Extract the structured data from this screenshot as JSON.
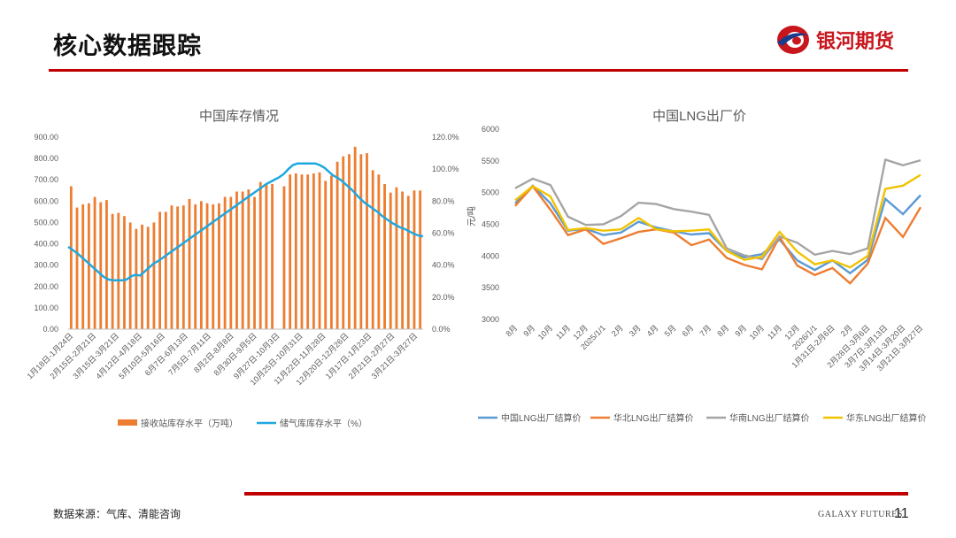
{
  "page": {
    "title": "核心数据跟踪",
    "brand": "银河期货",
    "source": "数据来源：气库、清能咨询",
    "footer_brand": "GALAXY FUTURES",
    "page_number": "11",
    "accent": "#c00000"
  },
  "chart_data": [
    {
      "type": "bar+line",
      "title": "中国库存情况",
      "categories": [
        "1月18日-1月24日",
        "2月15日-2月21日",
        "3月15日-3月21日",
        "4月12日-4月18日",
        "5月10日-5月16日",
        "6月7日-6月13日",
        "7月5日-7月11日",
        "8月2日-8月8日",
        "8月30日-9月5日",
        "9月27日-10月3日",
        "10月25日-10月31日",
        "11月22日-11月28日",
        "12月20日-12月26日",
        "1月17日-1月23日",
        "2月21日-2月27日",
        "3月21日-3月27日"
      ],
      "bar_values": [
        670,
        570,
        585,
        590,
        620,
        595,
        605,
        540,
        545,
        530,
        500,
        470,
        490,
        480,
        500,
        550,
        550,
        580,
        575,
        580,
        610,
        585,
        600,
        590,
        585,
        590,
        620,
        620,
        645,
        645,
        655,
        620,
        690,
        680,
        680,
        null,
        670,
        725,
        730,
        725,
        725,
        730,
        735,
        695,
        720,
        785,
        810,
        820,
        855,
        820,
        825,
        745,
        725,
        680,
        640,
        665,
        645,
        625,
        650,
        650
      ],
      "line_values": [
        51.5,
        49.5,
        47.5,
        45,
        42.5,
        40,
        37.5,
        35,
        32.5,
        31,
        30.5,
        30.5,
        30.5,
        31,
        33,
        34,
        33.5,
        36,
        38.5,
        41,
        42.5,
        44.5,
        46.5,
        48.5,
        50.5,
        52.5,
        54.5,
        56.5,
        58.5,
        60.5,
        62.5,
        64.5,
        66.5,
        68.5,
        70.5,
        72.5,
        74.5,
        76.5,
        78.5,
        80.5,
        82.5,
        84.5,
        86.5,
        88.5,
        90.5,
        92,
        93.5,
        95,
        97,
        100,
        102.5,
        103.5,
        103.5,
        103.5,
        103.5,
        103.5,
        102.5,
        101,
        98.5,
        96,
        94.5,
        92.5,
        90,
        87.5,
        84.5,
        81.5,
        79,
        77,
        75,
        73,
        70.5,
        68.5,
        66.5,
        65,
        63.5,
        62.5,
        61,
        59.5,
        58.5,
        58
      ],
      "series": [
        {
          "name": "接收站库存水平（万吨）",
          "color": "#ed7d31",
          "axis": "left"
        },
        {
          "name": "储气库库存水平（%）",
          "color": "#1fa8df",
          "axis": "right"
        }
      ],
      "left_axis": {
        "min": 0,
        "max": 900,
        "ticks": [
          "900.00",
          "800.00",
          "700.00",
          "600.00",
          "500.00",
          "400.00",
          "300.00",
          "200.00",
          "100.00",
          "0.00"
        ]
      },
      "right_axis": {
        "min": 0,
        "max": 120,
        "ticks": [
          "120.0%",
          "100.0%",
          "80.0%",
          "60.0%",
          "40.0%",
          "20.0%",
          "0.0%"
        ]
      }
    },
    {
      "type": "line",
      "title": "中国LNG出厂价",
      "ylabel": "元/吨",
      "categories": [
        "8月",
        "9月",
        "10月",
        "11月",
        "12月",
        "2025/1/1",
        "2月",
        "3月",
        "4月",
        "5月",
        "6月",
        "7月",
        "8月",
        "9月",
        "10月",
        "11月",
        "12月",
        "2026/1/1",
        "1月31日-2月6日",
        "2月",
        "2月28日-3月6日",
        "3月7日-3月13日",
        "3月14日-3月20日",
        "3月21日-3月27日"
      ],
      "ylim": [
        3000,
        6000
      ],
      "y_ticks": [
        "6000",
        "5500",
        "5000",
        "4500",
        "4000",
        "3500",
        "3000"
      ],
      "series": [
        {
          "name": "中国LNG出厂结算价",
          "color": "#5b9bd5",
          "values": [
            4830,
            5110,
            4830,
            4400,
            4430,
            4330,
            4370,
            4540,
            4450,
            4390,
            4340,
            4360,
            4080,
            3980,
            4030,
            4260,
            3930,
            3780,
            3930,
            3730,
            3940,
            4900,
            4660,
            4960
          ]
        },
        {
          "name": "华北LNG出厂结算价",
          "color": "#ed7d31",
          "values": [
            4790,
            5100,
            4730,
            4330,
            4420,
            4190,
            4280,
            4380,
            4420,
            4370,
            4170,
            4260,
            3970,
            3860,
            3790,
            4300,
            3850,
            3700,
            3810,
            3570,
            3880,
            4600,
            4300,
            4770
          ]
        },
        {
          "name": "华南LNG出厂结算价",
          "color": "#a5a5a5",
          "values": [
            5070,
            5220,
            5120,
            4620,
            4490,
            4500,
            4630,
            4840,
            4820,
            4740,
            4700,
            4650,
            4120,
            4010,
            3950,
            4310,
            4210,
            4020,
            4080,
            4030,
            4120,
            5520,
            5430,
            5510
          ]
        },
        {
          "name": "华东LNG出厂结算价",
          "color": "#f2c200",
          "values": [
            4880,
            5100,
            4940,
            4410,
            4440,
            4400,
            4420,
            4600,
            4420,
            4390,
            4400,
            4420,
            4080,
            3940,
            3990,
            4380,
            4070,
            3870,
            3930,
            3820,
            4000,
            5060,
            5110,
            5280
          ]
        }
      ]
    }
  ]
}
